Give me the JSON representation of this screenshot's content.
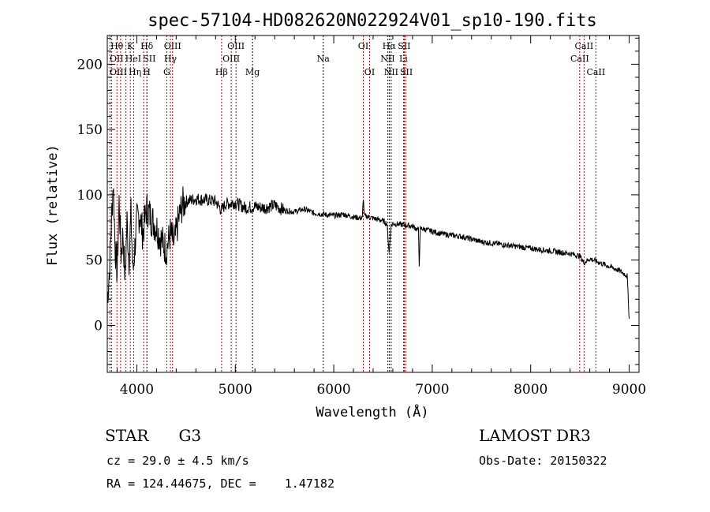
{
  "chart_data": {
    "type": "line",
    "title": "spec-57104-HD082620N022924V01_sp10-190.fits",
    "xlabel": "Wavelength (Å)",
    "ylabel": "Flux (relative)",
    "xlim": [
      3700,
      9100
    ],
    "ylim": [
      -36,
      222
    ],
    "grid": false,
    "x_ticks": [
      4000,
      5000,
      6000,
      7000,
      8000,
      9000
    ],
    "y_ticks": [
      0,
      50,
      100,
      150,
      200
    ],
    "series": [
      {
        "name": "spectrum",
        "x": [
          3700,
          3720,
          3740,
          3760,
          3780,
          3800,
          3820,
          3840,
          3860,
          3880,
          3900,
          3920,
          3940,
          3960,
          3980,
          4000,
          4030,
          4060,
          4100,
          4130,
          4160,
          4200,
          4250,
          4300,
          4340,
          4380,
          4420,
          4460,
          4500,
          4600,
          4700,
          4800,
          4860,
          4900,
          5000,
          5100,
          5200,
          5300,
          5400,
          5500,
          5600,
          5700,
          5800,
          5900,
          6000,
          6100,
          6200,
          6290,
          6300,
          6310,
          6400,
          6500,
          6540,
          6563,
          6580,
          6600,
          6700,
          6800,
          6860,
          6868,
          6880,
          6900,
          7000,
          7100,
          7200,
          7300,
          7400,
          7500,
          7600,
          7700,
          7800,
          7900,
          8000,
          8100,
          8200,
          8300,
          8400,
          8500,
          8540,
          8600,
          8700,
          8800,
          8900,
          8980,
          9000
        ],
        "y": [
          20,
          40,
          75,
          110,
          60,
          40,
          95,
          55,
          70,
          35,
          80,
          50,
          85,
          40,
          60,
          80,
          85,
          70,
          90,
          85,
          80,
          75,
          65,
          58,
          70,
          62,
          80,
          92,
          95,
          97,
          96,
          95,
          88,
          93,
          94,
          90,
          91,
          90,
          92,
          88,
          87,
          89,
          86,
          85,
          84,
          85,
          83,
          82,
          98,
          84,
          82,
          80,
          78,
          55,
          76,
          78,
          77,
          76,
          73,
          47,
          74,
          74,
          72,
          70,
          69,
          68,
          66,
          64,
          63,
          62,
          61,
          60,
          59,
          58,
          57,
          56,
          55,
          53,
          48,
          51,
          48,
          45,
          42,
          38,
          5
        ]
      }
    ],
    "lines": [
      {
        "label": "Hθ",
        "wave": 3798,
        "row": 1,
        "color": "#c00000"
      },
      {
        "label": "K",
        "wave": 3934,
        "row": 1,
        "color": "#c00000"
      },
      {
        "label": "Hδ",
        "wave": 4102,
        "row": 1,
        "color": "#000000"
      },
      {
        "label": "OIII",
        "wave": 4363,
        "row": 1,
        "color": "#c00000"
      },
      {
        "label": "OIII",
        "wave": 5007,
        "row": 1,
        "color": "#c00000"
      },
      {
        "label": "OI",
        "wave": 6300,
        "row": 1,
        "color": "#c00000"
      },
      {
        "label": "Hα",
        "wave": 6563,
        "row": 1,
        "color": "#000000"
      },
      {
        "label": "SII",
        "wave": 6716,
        "row": 1,
        "color": "#c00000"
      },
      {
        "label": "CaII",
        "wave": 8542,
        "row": 1,
        "color": "#c00000"
      },
      {
        "label": "OII",
        "wave": 3727,
        "row": 2,
        "color": "#c00000"
      },
      {
        "label": "HeI",
        "wave": 3889,
        "row": 2,
        "color": "#c00000"
      },
      {
        "label": "SII",
        "wave": 4069,
        "row": 2,
        "color": "#c00000"
      },
      {
        "label": "Hγ",
        "wave": 4341,
        "row": 2,
        "color": "#c00000"
      },
      {
        "label": "OIII",
        "wave": 4959,
        "row": 2,
        "color": "#c00000"
      },
      {
        "label": "Na",
        "wave": 5893,
        "row": 2,
        "color": "#000000"
      },
      {
        "label": "NII",
        "wave": 6548,
        "row": 2,
        "color": "#c00000"
      },
      {
        "label": "Li",
        "wave": 6708,
        "row": 2,
        "color": "#c00000"
      },
      {
        "label": "CaII",
        "wave": 8498,
        "row": 2,
        "color": "#c00000"
      },
      {
        "label": "OIII",
        "wave": 3745,
        "row": 3,
        "color": "#c00000"
      },
      {
        "label": "Hη",
        "wave": 3835,
        "row": 3,
        "color": "#c00000"
      },
      {
        "label": "H",
        "wave": 3968,
        "row": 3,
        "color": "#c00000"
      },
      {
        "label": "G",
        "wave": 4304,
        "row": 3,
        "color": "#c00000"
      },
      {
        "label": "Hβ",
        "wave": 4861,
        "row": 3,
        "color": "#c00000"
      },
      {
        "label": "Mg",
        "wave": 5175,
        "row": 3,
        "color": "#000000"
      },
      {
        "label": "OI",
        "wave": 6364,
        "row": 3,
        "color": "#c00000"
      },
      {
        "label": "NII",
        "wave": 6583,
        "row": 3,
        "color": "#000000"
      },
      {
        "label": "SII",
        "wave": 6731,
        "row": 3,
        "color": "#c00000"
      },
      {
        "label": "CaII",
        "wave": 8662,
        "row": 3,
        "color": "#c00000"
      }
    ]
  },
  "info": {
    "object": "STAR",
    "subclass": "G3",
    "survey": "LAMOST DR3",
    "cz": "cz = 29.0 ± 4.5 km/s",
    "obs_date": "Obs-Date: 20150322",
    "radec": "RA = 124.44675, DEC =    1.47182"
  }
}
